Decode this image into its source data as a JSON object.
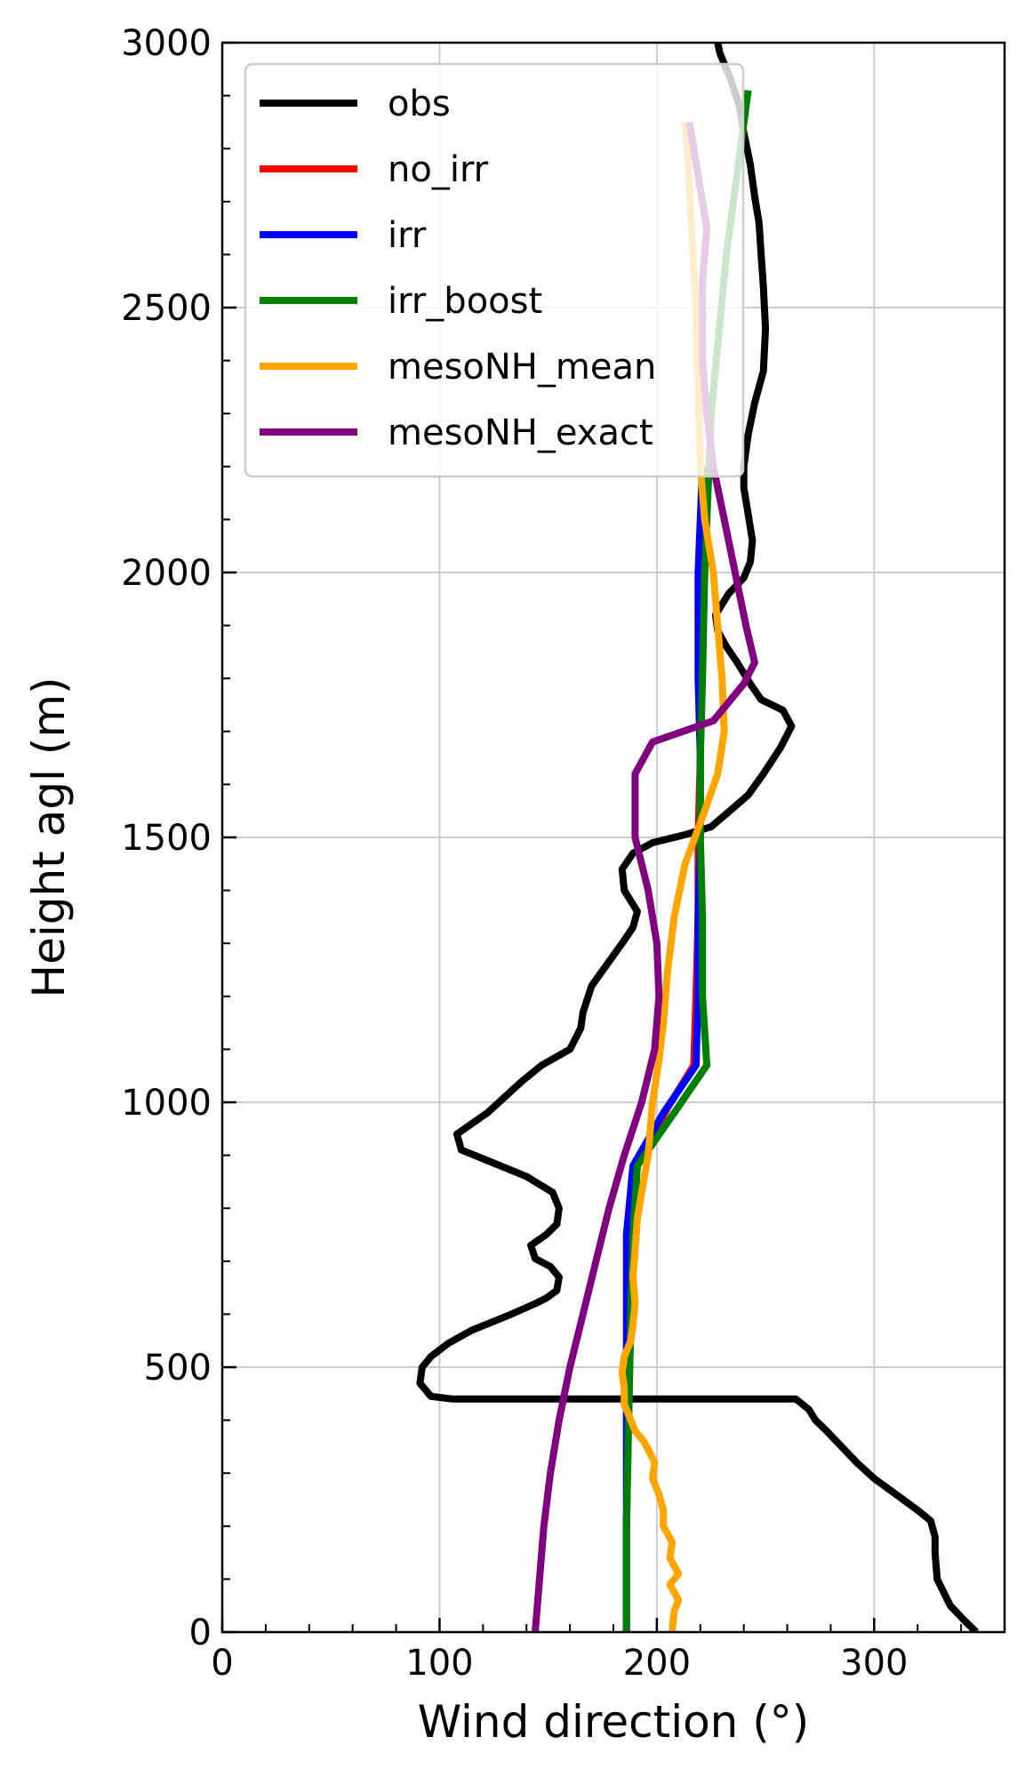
{
  "chart_data": {
    "type": "line",
    "title": "",
    "xlabel": "Wind direction (°)",
    "ylabel": "Height agl (m)",
    "xlim": [
      0,
      360
    ],
    "ylim": [
      0,
      3000
    ],
    "x_ticks": [
      0,
      100,
      200,
      300
    ],
    "y_ticks": [
      0,
      500,
      1000,
      1500,
      2000,
      2500,
      3000
    ],
    "x_tick_labels": [
      "0",
      "100",
      "200",
      "300"
    ],
    "y_tick_labels": [
      "0",
      "500",
      "1000",
      "1500",
      "2000",
      "2500",
      "3000"
    ],
    "grid": true,
    "legend_position": "top-left",
    "series": [
      {
        "name": "obs",
        "color": "#000000",
        "points": [
          [
            347,
            0
          ],
          [
            342,
            20
          ],
          [
            335,
            50
          ],
          [
            329,
            100
          ],
          [
            328,
            150
          ],
          [
            328,
            180
          ],
          [
            326,
            210
          ],
          [
            320,
            230
          ],
          [
            310,
            260
          ],
          [
            300,
            290
          ],
          [
            292,
            320
          ],
          [
            285,
            350
          ],
          [
            278,
            380
          ],
          [
            273,
            400
          ],
          [
            270,
            420
          ],
          [
            264,
            440
          ],
          [
            240,
            440
          ],
          [
            200,
            440
          ],
          [
            150,
            440
          ],
          [
            120,
            440
          ],
          [
            106,
            440
          ],
          [
            96,
            445
          ],
          [
            91,
            470
          ],
          [
            92,
            500
          ],
          [
            96,
            520
          ],
          [
            104,
            545
          ],
          [
            115,
            570
          ],
          [
            133,
            600
          ],
          [
            144,
            620
          ],
          [
            149,
            630
          ],
          [
            154,
            645
          ],
          [
            155,
            670
          ],
          [
            151,
            690
          ],
          [
            144,
            705
          ],
          [
            142,
            730
          ],
          [
            149,
            750
          ],
          [
            154,
            770
          ],
          [
            155,
            800
          ],
          [
            152,
            830
          ],
          [
            140,
            860
          ],
          [
            125,
            885
          ],
          [
            110,
            910
          ],
          [
            108,
            940
          ],
          [
            115,
            960
          ],
          [
            122,
            980
          ],
          [
            130,
            1010
          ],
          [
            138,
            1040
          ],
          [
            147,
            1070
          ],
          [
            160,
            1100
          ],
          [
            165,
            1140
          ],
          [
            166,
            1170
          ],
          [
            170,
            1220
          ],
          [
            177,
            1260
          ],
          [
            184,
            1300
          ],
          [
            189,
            1330
          ],
          [
            191,
            1360
          ],
          [
            185,
            1400
          ],
          [
            184,
            1440
          ],
          [
            189,
            1470
          ],
          [
            198,
            1490
          ],
          [
            213,
            1505
          ],
          [
            225,
            1520
          ],
          [
            235,
            1555
          ],
          [
            242,
            1580
          ],
          [
            249,
            1620
          ],
          [
            257,
            1670
          ],
          [
            262,
            1710
          ],
          [
            258,
            1740
          ],
          [
            248,
            1760
          ],
          [
            243,
            1790
          ],
          [
            237,
            1830
          ],
          [
            232,
            1860
          ],
          [
            228,
            1890
          ],
          [
            227,
            1920
          ],
          [
            233,
            1960
          ],
          [
            240,
            1990
          ],
          [
            243,
            2020
          ],
          [
            244,
            2060
          ],
          [
            242,
            2110
          ],
          [
            240,
            2160
          ],
          [
            240,
            2200
          ],
          [
            242,
            2260
          ],
          [
            245,
            2320
          ],
          [
            249,
            2380
          ],
          [
            250,
            2460
          ],
          [
            249,
            2540
          ],
          [
            248,
            2600
          ],
          [
            247,
            2660
          ],
          [
            245,
            2710
          ],
          [
            243,
            2770
          ],
          [
            240,
            2830
          ],
          [
            238,
            2880
          ],
          [
            234,
            2930
          ],
          [
            229,
            2980
          ],
          [
            228,
            3000
          ]
        ]
      },
      {
        "name": "no_irr",
        "color": "#ff0000",
        "points": [
          [
            186,
            0
          ],
          [
            186,
            200
          ],
          [
            187,
            400
          ],
          [
            188,
            600
          ],
          [
            189,
            750
          ],
          [
            191,
            880
          ],
          [
            205,
            990
          ],
          [
            217,
            1070
          ],
          [
            218,
            1200
          ],
          [
            219,
            1350
          ],
          [
            219,
            1500
          ],
          [
            220,
            1650
          ],
          [
            220,
            1800
          ],
          [
            220,
            2000
          ],
          [
            222,
            2200
          ]
        ]
      },
      {
        "name": "irr",
        "color": "#0000ff",
        "points": [
          [
            186,
            0
          ],
          [
            186,
            200
          ],
          [
            186,
            400
          ],
          [
            186,
            600
          ],
          [
            186,
            750
          ],
          [
            189,
            880
          ],
          [
            203,
            980
          ],
          [
            218,
            1070
          ],
          [
            219,
            1200
          ],
          [
            219,
            1350
          ],
          [
            220,
            1500
          ],
          [
            220,
            1650
          ],
          [
            219,
            1800
          ],
          [
            219,
            2000
          ],
          [
            221,
            2200
          ]
        ]
      },
      {
        "name": "irr_boost",
        "color": "#008000",
        "points": [
          [
            186,
            0
          ],
          [
            186,
            200
          ],
          [
            187,
            400
          ],
          [
            188,
            600
          ],
          [
            189,
            750
          ],
          [
            191,
            880
          ],
          [
            208,
            980
          ],
          [
            223,
            1070
          ],
          [
            221,
            1200
          ],
          [
            221,
            1350
          ],
          [
            220,
            1500
          ],
          [
            220,
            1650
          ],
          [
            221,
            1800
          ],
          [
            222,
            2000
          ],
          [
            225,
            2300
          ],
          [
            232,
            2600
          ],
          [
            242,
            2910
          ]
        ]
      },
      {
        "name": "mesoNH_mean",
        "color": "#ffa500",
        "points": [
          [
            207,
            0
          ],
          [
            208,
            40
          ],
          [
            210,
            60
          ],
          [
            206,
            90
          ],
          [
            210,
            110
          ],
          [
            206,
            140
          ],
          [
            207,
            170
          ],
          [
            203,
            200
          ],
          [
            203,
            230
          ],
          [
            201,
            260
          ],
          [
            198,
            290
          ],
          [
            199,
            320
          ],
          [
            196,
            345
          ],
          [
            194,
            360
          ],
          [
            190,
            380
          ],
          [
            188,
            400
          ],
          [
            185,
            430
          ],
          [
            185,
            460
          ],
          [
            184,
            490
          ],
          [
            185,
            520
          ],
          [
            188,
            550
          ],
          [
            189,
            580
          ],
          [
            190,
            620
          ],
          [
            189,
            670
          ],
          [
            190,
            720
          ],
          [
            191,
            780
          ],
          [
            193,
            830
          ],
          [
            196,
            900
          ],
          [
            198,
            1000
          ],
          [
            201,
            1080
          ],
          [
            203,
            1150
          ],
          [
            205,
            1250
          ],
          [
            208,
            1350
          ],
          [
            213,
            1450
          ],
          [
            222,
            1550
          ],
          [
            228,
            1620
          ],
          [
            231,
            1700
          ],
          [
            230,
            1800
          ],
          [
            228,
            1900
          ],
          [
            226,
            2000
          ],
          [
            222,
            2100
          ],
          [
            220,
            2200
          ],
          [
            219,
            2350
          ],
          [
            218,
            2500
          ],
          [
            216,
            2650
          ],
          [
            214,
            2800
          ],
          [
            213,
            2850
          ]
        ]
      },
      {
        "name": "mesoNH_exact",
        "color": "#800080",
        "points": [
          [
            144,
            0
          ],
          [
            146,
            100
          ],
          [
            148,
            200
          ],
          [
            151,
            300
          ],
          [
            155,
            400
          ],
          [
            160,
            500
          ],
          [
            166,
            600
          ],
          [
            172,
            700
          ],
          [
            178,
            800
          ],
          [
            185,
            900
          ],
          [
            193,
            1000
          ],
          [
            199,
            1100
          ],
          [
            201,
            1200
          ],
          [
            200,
            1300
          ],
          [
            196,
            1400
          ],
          [
            190,
            1500
          ],
          [
            190,
            1620
          ],
          [
            198,
            1680
          ],
          [
            226,
            1720
          ],
          [
            240,
            1790
          ],
          [
            245,
            1830
          ],
          [
            241,
            1900
          ],
          [
            236,
            2000
          ],
          [
            231,
            2100
          ],
          [
            226,
            2200
          ],
          [
            223,
            2300
          ],
          [
            221,
            2400
          ],
          [
            221,
            2550
          ],
          [
            223,
            2650
          ],
          [
            219,
            2750
          ],
          [
            215,
            2850
          ]
        ]
      }
    ]
  }
}
